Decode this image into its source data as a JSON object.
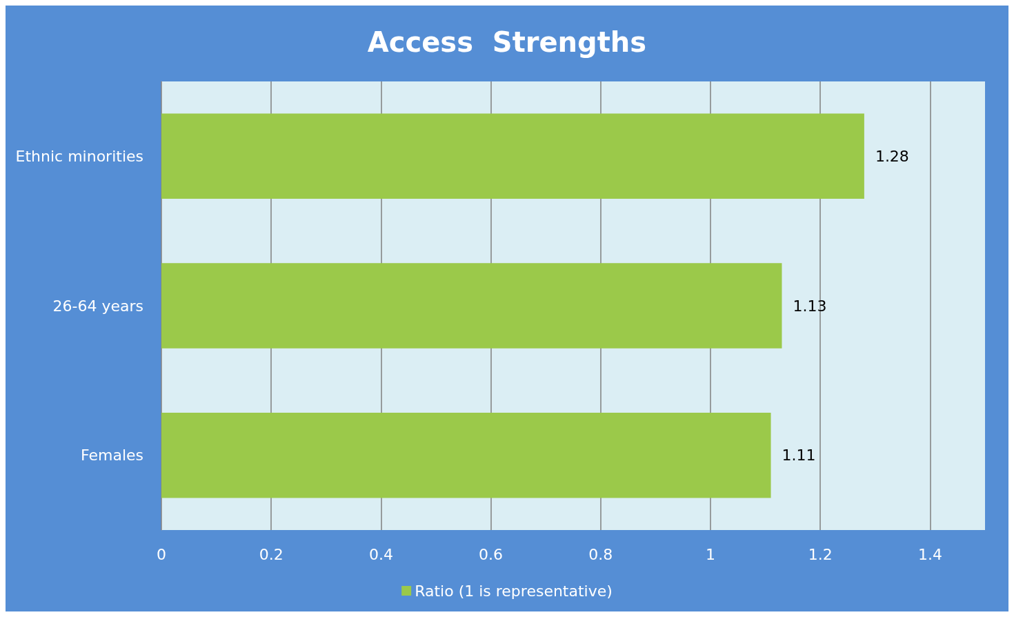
{
  "chart_data": {
    "type": "bar",
    "orientation": "horizontal",
    "title": "Access  Strengths",
    "categories": [
      "Ethnic minorities",
      "26-64 years",
      "Females"
    ],
    "series": [
      {
        "name": "Ratio (1 is representative)",
        "color": "#9bc94a",
        "values": [
          1.28,
          1.13,
          1.11
        ]
      }
    ],
    "xlim": [
      0,
      1.5
    ],
    "xticks": [
      0,
      0.2,
      0.4,
      0.6,
      0.8,
      1,
      1.2,
      1.4
    ],
    "grid": "x",
    "legend": "bottom",
    "data_labels": true
  }
}
